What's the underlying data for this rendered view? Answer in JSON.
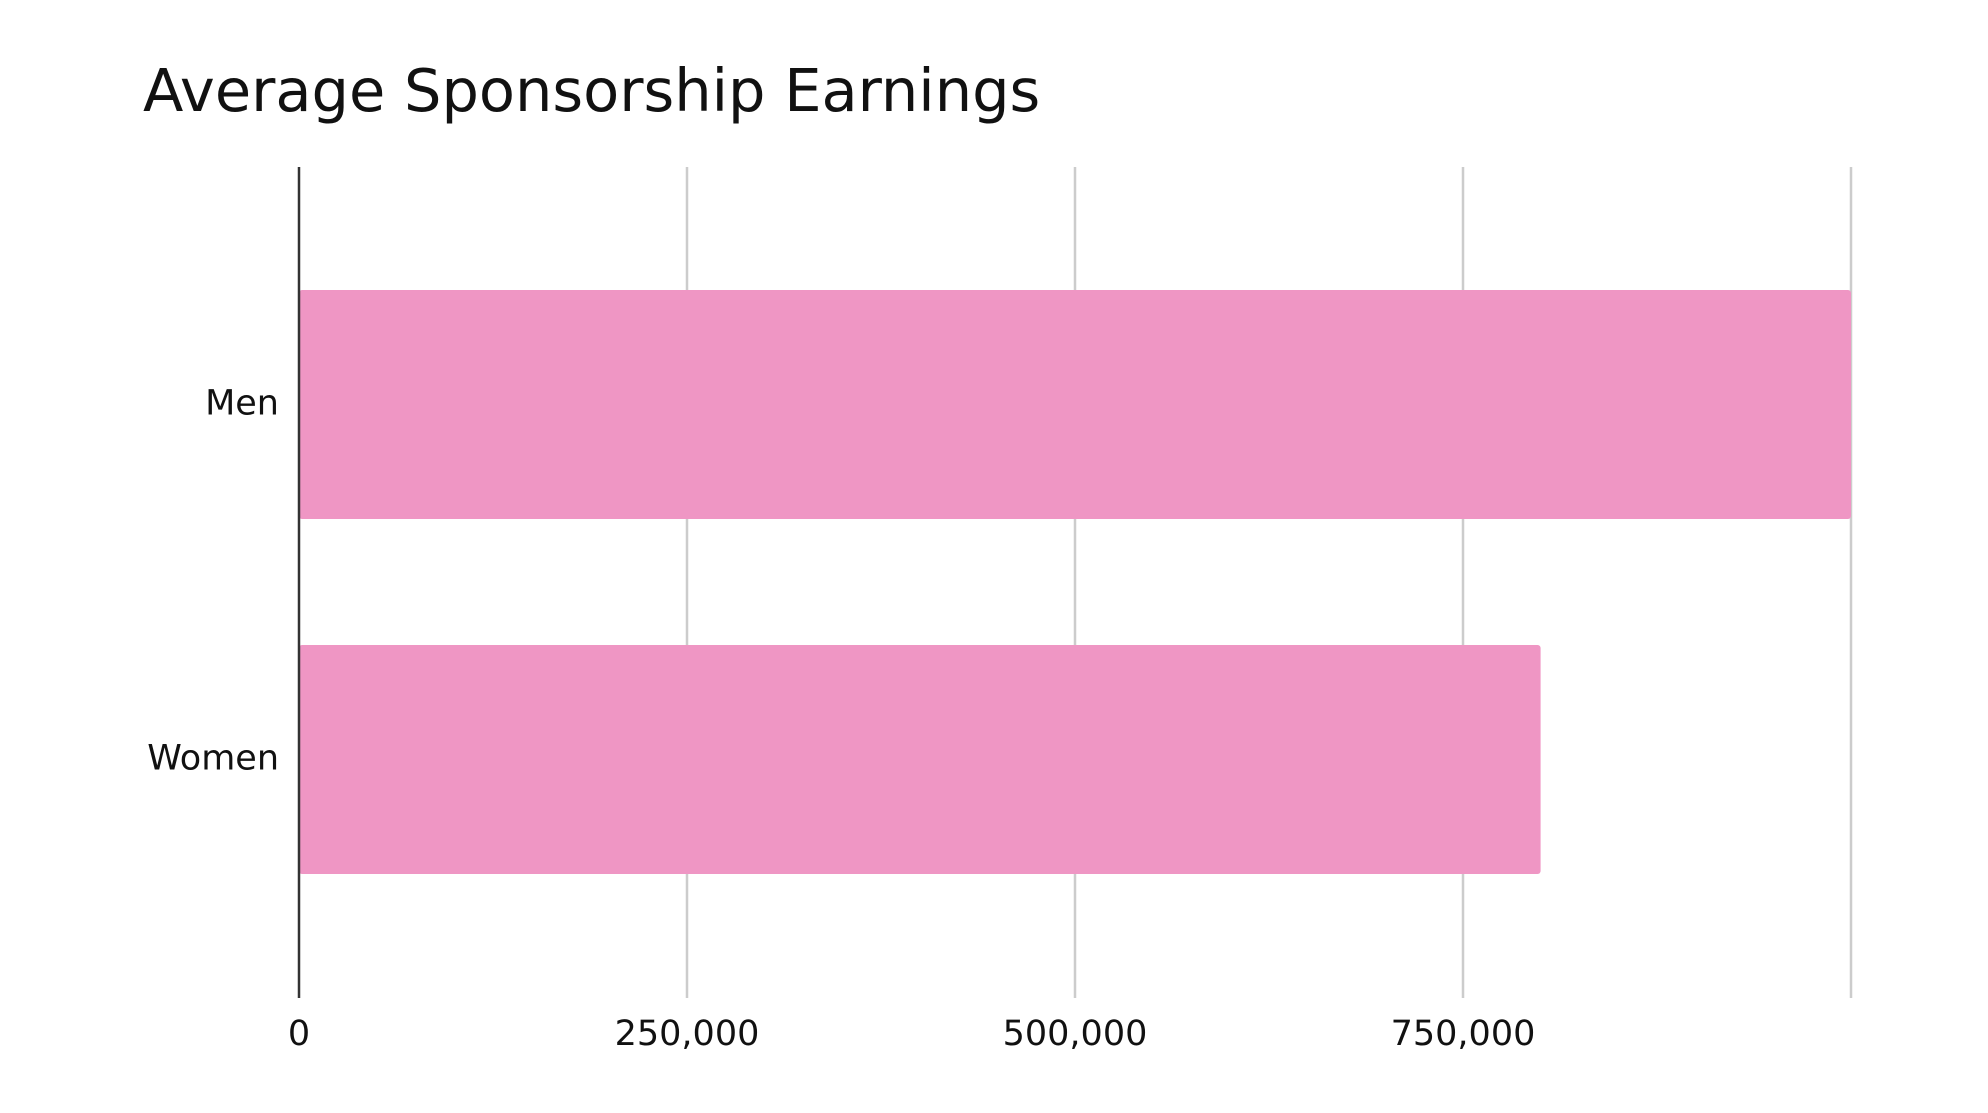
{
  "chart_data": {
    "type": "bar",
    "orientation": "horizontal",
    "title": "Average Sponsorship Earnings",
    "xlabel": "",
    "ylabel": "",
    "categories": [
      "Men",
      "Women"
    ],
    "values": [
      1000000,
      800000
    ],
    "xlim": [
      0,
      1000000
    ],
    "ticks": [
      0,
      250000,
      500000,
      750000,
      1000000
    ],
    "tick_labels": [
      "0",
      "250,000",
      "500,000",
      "750,000",
      ""
    ],
    "grid": "vertical",
    "legend": "none",
    "bar_color": "#ef96c4",
    "grid_color": "#cccccc",
    "axis_color": "#333333"
  }
}
